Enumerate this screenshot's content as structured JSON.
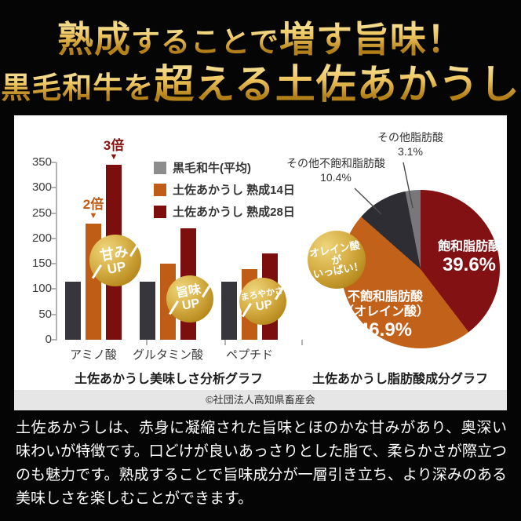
{
  "header": {
    "line1_seg1": "熟成",
    "line1_seg2": "することで",
    "line1_seg3": "増す旨味！",
    "line2_seg1": "黒毛和牛を",
    "line2_seg2": "超える土佐あかうし"
  },
  "chart_data": [
    {
      "type": "bar",
      "title": "土佐あかうし美味しさ分析グラフ",
      "categories": [
        "アミノ酸",
        "グルタミン酸",
        "ペプチド"
      ],
      "series": [
        {
          "name": "黒毛和牛(平均)",
          "values": [
            115,
            115,
            115
          ],
          "color": "#37363c",
          "legend_color": "#8d8d8d"
        },
        {
          "name": "土佐あかうし 熟成14日",
          "values": [
            230,
            150,
            140
          ],
          "color": "#bf5c16"
        },
        {
          "name": "土佐あかうし 熟成28日",
          "values": [
            345,
            220,
            170
          ],
          "color": "#7d0e0e"
        }
      ],
      "ylim": [
        0,
        350
      ],
      "yticks": [
        0,
        50,
        100,
        150,
        200,
        250,
        300,
        350
      ],
      "legend_position": "top-right",
      "grid": false,
      "annotations": [
        {
          "text": "2倍",
          "target_series": "土佐あかうし 熟成14日",
          "target_category": "アミノ酸",
          "color": "#c05a14"
        },
        {
          "text": "3倍",
          "target_series": "土佐あかうし 熟成28日",
          "target_category": "アミノ酸",
          "color": "#8b1111"
        }
      ],
      "badges": [
        {
          "line1": "甘み",
          "line2": "UP",
          "target_category": "アミノ酸"
        },
        {
          "line1": "旨味",
          "line2": "UP",
          "target_category": "グルタミン酸"
        },
        {
          "line1": "まろやかさ",
          "line2": "UP",
          "target_category": "ペプチド"
        }
      ]
    },
    {
      "type": "pie",
      "title": "土佐あかうし脂肪酸成分グラフ",
      "start_angle_deg": 0,
      "direction": "clockwise",
      "slices": [
        {
          "label": "飽和脂肪酸",
          "value": 39.6,
          "color": "#821114"
        },
        {
          "label": "不飽和脂肪酸",
          "label2": "（オレイン酸）",
          "value": 46.9,
          "color": "#c2611a"
        },
        {
          "label": "その他不飽和脂肪酸",
          "value": 10.4,
          "color": "#2e2d33"
        },
        {
          "label": "その他脂肪酸",
          "value": 3.1,
          "color": "#78777c"
        }
      ],
      "badge": {
        "line1": "オレイン酸が",
        "line2": "いっぱい！"
      }
    }
  ],
  "credit": "©社団法人高知県畜産会",
  "body_text": "土佐あかうしは、赤身に凝縮された旨味とほのかな甘みがあり、奥深い味わいが特徴です。口どけが良いあっさりとした脂で、柔らかさが際立つのも魅力です。熟成することで旨味成分が一層引き立ち、より深みのある美味しさを楽しむことができます。",
  "colors": {
    "gold_accent": "#d8a93c",
    "wagyu_gray": "#8d8d8d",
    "aged14_orange": "#bf5c16",
    "aged28_red": "#7d0e0e",
    "background": "#050505",
    "panel": "#ffffff"
  }
}
